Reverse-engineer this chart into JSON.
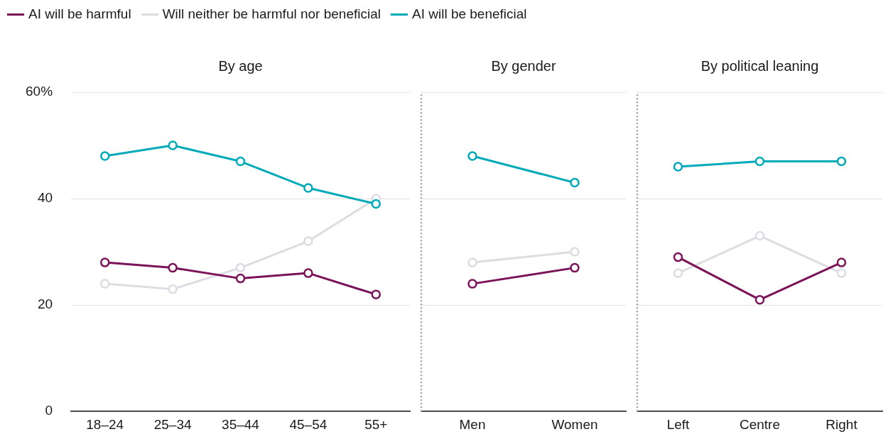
{
  "chart_data": [
    {
      "type": "line",
      "title": "By age",
      "categories": [
        "18–24",
        "25–34",
        "35–44",
        "45–54",
        "55+"
      ],
      "series": [
        {
          "name": "AI will be harmful",
          "color": "#7b1359",
          "values": [
            28,
            27,
            25,
            26,
            22
          ]
        },
        {
          "name": "Will neither be harmful nor beneficial",
          "color": "#dcdde3",
          "values": [
            24,
            23,
            27,
            32,
            40
          ]
        },
        {
          "name": "AI will be beneficial",
          "color": "#00aab8",
          "values": [
            48,
            50,
            47,
            42,
            39
          ]
        }
      ],
      "ylim": [
        0,
        60
      ],
      "yticks": [
        0,
        20,
        40,
        {
          "value": 60,
          "label": "60%"
        }
      ],
      "grid": "y",
      "legend": "top",
      "marker": "circle",
      "line_style": "solid"
    },
    {
      "type": "line",
      "title": "By gender",
      "categories": [
        "Men",
        "Women"
      ],
      "series": [
        {
          "color": "#7b1359",
          "values": [
            24,
            27
          ]
        },
        {
          "color": "#dcdde3",
          "values": [
            28,
            30
          ]
        },
        {
          "color": "#00aab8",
          "values": [
            48,
            43
          ]
        }
      ],
      "ylim": [
        0,
        60
      ],
      "yticks": [
        0,
        20,
        40,
        60
      ],
      "tick_labels": "x",
      "grid": "y",
      "marker": "circle",
      "line_style": "solid"
    },
    {
      "type": "line",
      "title": "By political leaning",
      "categories": [
        "Left",
        "Centre",
        "Right"
      ],
      "series": [
        {
          "color": "#7b1359",
          "values": [
            29,
            21,
            28
          ]
        },
        {
          "color": "#dcdde3",
          "values": [
            26,
            33,
            26
          ]
        },
        {
          "color": "#00aab8",
          "values": [
            46,
            47,
            47
          ]
        }
      ],
      "ylim": [
        0,
        60
      ],
      "yticks": [
        0,
        20,
        40,
        60
      ],
      "tick_labels": "x",
      "grid": "y",
      "marker": "circle",
      "line_style": "solid"
    }
  ]
}
